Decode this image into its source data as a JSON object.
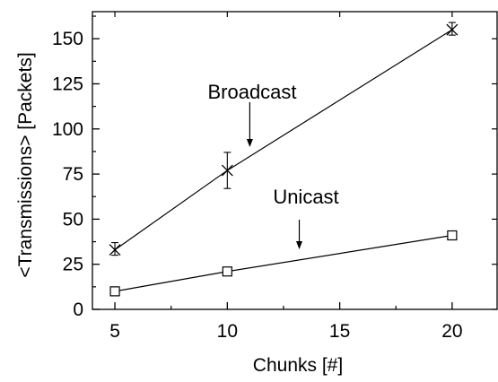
{
  "chart_data": {
    "type": "line",
    "title": "",
    "xlabel": "Chunks [#]",
    "ylabel": "<Transmissions> [Packets]",
    "xlim": [
      4,
      22
    ],
    "ylim": [
      0,
      165
    ],
    "x_ticks": [
      5,
      10,
      15,
      20
    ],
    "y_ticks": [
      0,
      25,
      50,
      75,
      100,
      125,
      150
    ],
    "grid": false,
    "legend": "none",
    "series": [
      {
        "name": "Broadcast",
        "marker": "x",
        "x": [
          5,
          10,
          20
        ],
        "y": [
          33,
          77,
          155
        ],
        "err_low": [
          30,
          67,
          152
        ],
        "err_high": [
          37,
          87,
          159
        ]
      },
      {
        "name": "Unicast",
        "marker": "square",
        "x": [
          5,
          10,
          20
        ],
        "y": [
          10,
          21,
          41
        ],
        "err_low": [
          10,
          20,
          40
        ],
        "err_high": [
          10,
          23,
          43
        ]
      }
    ],
    "annotations": [
      {
        "text": "Broadcast",
        "series": "Broadcast",
        "arrow_to_x": 11
      },
      {
        "text": "Unicast",
        "series": "Unicast",
        "arrow_to_x": 13.2
      }
    ],
    "colors": {
      "line": "#000000",
      "background": "#ffffff"
    }
  }
}
